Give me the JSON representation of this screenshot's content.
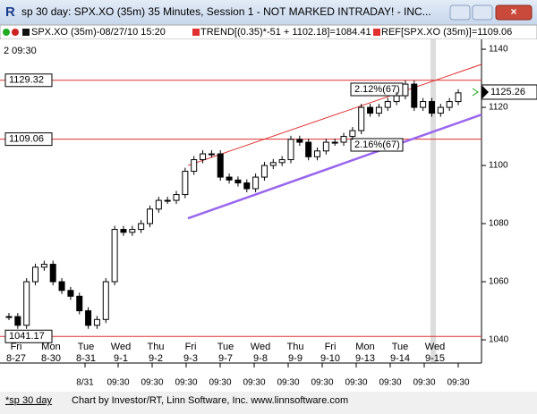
{
  "window": {
    "title": "sp 30 day: SPX.XO (35m) 35 Minutes, Session 1 - NOT MARKED INTRADAY! - INC..."
  },
  "legend": [
    "SPX.XO (35m)-08/27/10 15:20",
    "TREND[(0.35)*-51 + 1102.18]=1084.41",
    "REF[SPX.XO (35m)]=1109.06"
  ],
  "corner_label": "2  09:30",
  "price_axis": {
    "ylim": [
      1035.4,
      1143.1
    ],
    "ticks": [
      1140,
      1120,
      1100,
      1080,
      1060,
      1040
    ]
  },
  "reference_levels": [
    1129.32,
    1109.06,
    1041.17
  ],
  "trend_lines": [
    {
      "color": "#e03030",
      "start": 1100.0,
      "end": 1134.8
    },
    {
      "color": "#9966ee",
      "start": 1081.8,
      "end": 1117.5
    }
  ],
  "annotations": [
    "2.12%(67)",
    "2.16%(67)"
  ],
  "last_price": 1125.26,
  "closes": [
    1048,
    1045,
    1060,
    1065,
    1066,
    1060,
    1057,
    1055,
    1050,
    1045,
    1047,
    1060,
    1078,
    1077,
    1078,
    1080,
    1085,
    1088,
    1088,
    1090,
    1098,
    1102,
    1104,
    1104,
    1096,
    1095,
    1094,
    1092,
    1096,
    1100,
    1101,
    1102,
    1109,
    1108,
    1103,
    1105,
    1108,
    1108,
    1110,
    1112,
    1120,
    1118,
    1120,
    1122,
    1124,
    1128,
    1120,
    1122,
    1118,
    1120,
    1122,
    1125
  ],
  "days": [
    [
      "Fri",
      "8-27"
    ],
    [
      "Mon",
      "8-30"
    ],
    [
      "Tue",
      "8-31"
    ],
    [
      "Wed",
      "9-1"
    ],
    [
      "Thu",
      "9-2"
    ],
    [
      "Fri",
      "9-3"
    ],
    [
      "Tue",
      "9-7"
    ],
    [
      "Wed",
      "9-8"
    ],
    [
      "Thu",
      "9-9"
    ],
    [
      "Fri",
      "9-10"
    ],
    [
      "Mon",
      "9-13"
    ],
    [
      "Tue",
      "9-14"
    ],
    [
      "Wed",
      "9-15"
    ]
  ],
  "times": [
    "8/31",
    "09:30",
    "09:30",
    "09:30",
    "09:30",
    "09:30",
    "09:30",
    "09:30",
    "09:30",
    "09:30",
    "09:30",
    "09:30"
  ],
  "status": [
    "*sp 30 day",
    "Chart by Investor/RT, Linn Software, Inc. www.linnsoftware.com"
  ]
}
